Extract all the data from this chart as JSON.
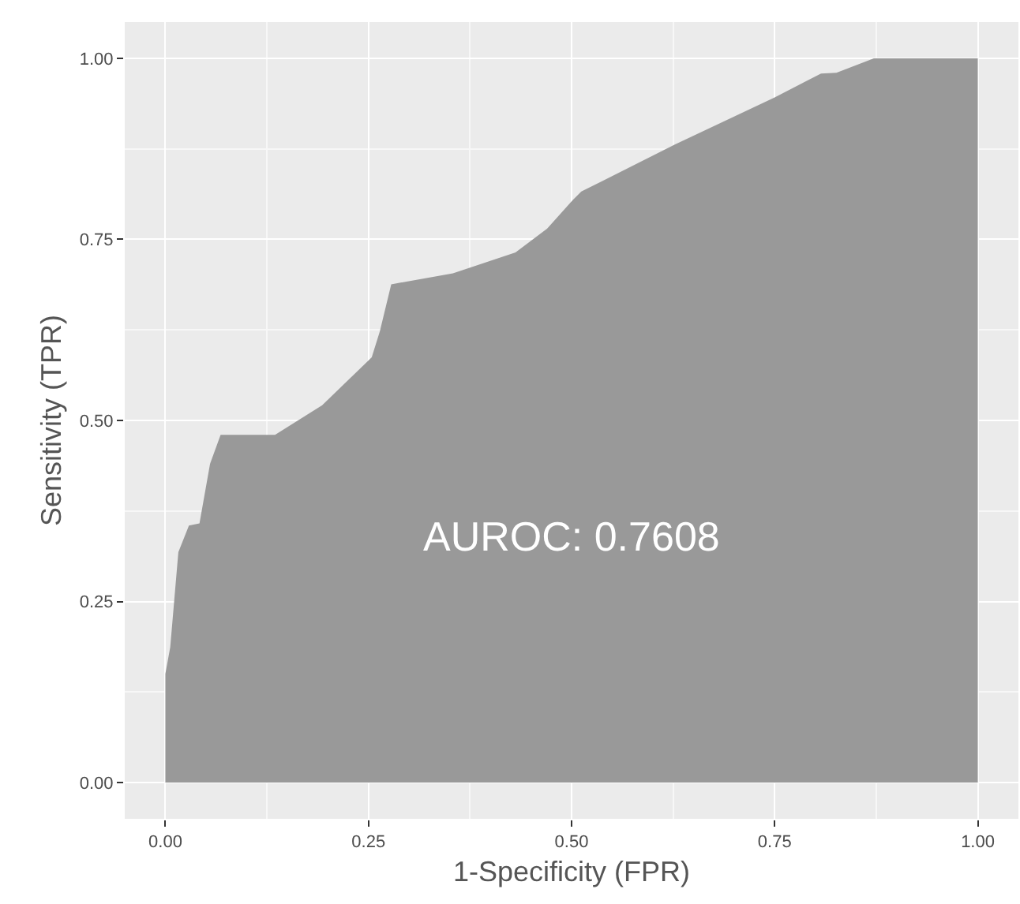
{
  "chart_data": {
    "type": "area",
    "xlabel": "1-Specificity (FPR)",
    "ylabel": "Sensitivity (TPR)",
    "annotations": [
      "AUROC: 0.7608"
    ],
    "series": [
      {
        "color": "#999999",
        "x": [
          0,
          0,
          0.006,
          0.016,
          0.029,
          0.042,
          0.055,
          0.068,
          0.135,
          0.193,
          0.254,
          0.264,
          0.278,
          0.354,
          0.431,
          0.47,
          0.502,
          0.512,
          0.627,
          0.75,
          0.807,
          0.826,
          0.872,
          1
        ],
        "values": [
          0,
          0.15,
          0.187,
          0.318,
          0.355,
          0.358,
          0.44,
          0.48,
          0.48,
          0.521,
          0.587,
          0.623,
          0.688,
          0.703,
          0.732,
          0.765,
          0.805,
          0.816,
          0.881,
          0.946,
          0.979,
          0.98,
          1,
          1
        ]
      }
    ],
    "xlim": [
      -0.05,
      1.05
    ],
    "ylim": [
      -0.05,
      1.05
    ],
    "xticks": [
      {
        "value": 0,
        "label": "0.00"
      },
      {
        "value": 0.25,
        "label": "0.25"
      },
      {
        "value": 0.5,
        "label": "0.50"
      },
      {
        "value": 0.75,
        "label": "0.75"
      },
      {
        "value": 1,
        "label": "1.00"
      }
    ],
    "yticks": [
      {
        "value": 0,
        "label": "0.00"
      },
      {
        "value": 0.25,
        "label": "0.25"
      },
      {
        "value": 0.5,
        "label": "0.50"
      },
      {
        "value": 0.75,
        "label": "0.75"
      },
      {
        "value": 1,
        "label": "1.00"
      }
    ],
    "grid": true,
    "legend": false
  }
}
